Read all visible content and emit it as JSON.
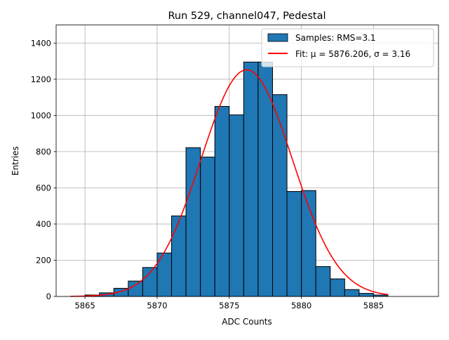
{
  "chart_data": {
    "type": "bar",
    "title": "Run 529, channel047, Pedestal",
    "xlabel": "ADC Counts",
    "ylabel": "Entries",
    "xlim": [
      5863.0,
      5889.5
    ],
    "ylim": [
      0,
      1500
    ],
    "xticks": [
      5865,
      5870,
      5875,
      5880,
      5885
    ],
    "yticks": [
      0,
      200,
      400,
      600,
      800,
      1000,
      1200,
      1400
    ],
    "grid": true,
    "legend_position": "top-right",
    "histogram": {
      "name": "Samples: RMS=3.1",
      "color": "#1f77b4",
      "bin_edges": [
        5864,
        5865,
        5866,
        5867,
        5868,
        5869,
        5870,
        5871,
        5872,
        5873,
        5874,
        5875,
        5876,
        5877,
        5878,
        5879,
        5880,
        5881,
        5882,
        5883,
        5884,
        5885,
        5886
      ],
      "counts": [
        0,
        8,
        20,
        45,
        85,
        160,
        240,
        445,
        822,
        770,
        1050,
        1003,
        1295,
        1295,
        1115,
        580,
        585,
        165,
        97,
        38,
        17,
        8
      ]
    },
    "fit": {
      "name": "Fit: μ = 5876.206, σ = 3.16",
      "color": "#ff0000",
      "mu": 5876.206,
      "sigma": 3.16,
      "amplitude": 1252,
      "x_range": [
        5864,
        5886
      ]
    }
  }
}
